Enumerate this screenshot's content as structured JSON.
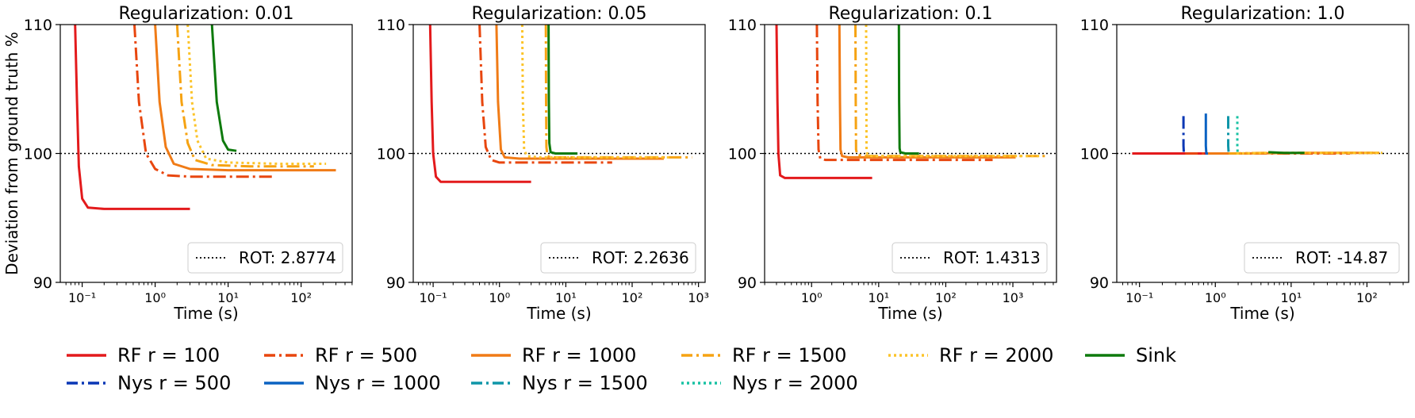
{
  "chart_data": {
    "type": "line",
    "ylabel": "Deviation from ground truth %",
    "xlabel": "Time (s)",
    "xscale": "log",
    "ylim": [
      90,
      110
    ],
    "y_ticks": [
      "90",
      "100",
      "110"
    ],
    "grid": false,
    "reference_line": {
      "y": 100,
      "style": "dotted",
      "color": "#000000"
    },
    "legend": {
      "placement": "bottom",
      "entries": [
        {
          "label": "RF r = 100",
          "color": "#e31a1c",
          "dash": "solid"
        },
        {
          "label": "RF r = 500",
          "color": "#e8460e",
          "dash": "dashdot"
        },
        {
          "label": "RF r = 1000",
          "color": "#f07b16",
          "dash": "solid"
        },
        {
          "label": "RF r = 1500",
          "color": "#f6a313",
          "dash": "dashdot"
        },
        {
          "label": "RF r = 2000",
          "color": "#fcc42a",
          "dash": "dotted"
        },
        {
          "label": "Sink",
          "color": "#0e7a0d",
          "dash": "solid"
        },
        {
          "label": "Nys r = 500",
          "color": "#0a37b5",
          "dash": "dashdot"
        },
        {
          "label": "Nys r = 1000",
          "color": "#0b62c2",
          "dash": "solid"
        },
        {
          "label": "Nys r = 1500",
          "color": "#0f96a8",
          "dash": "dashdot"
        },
        {
          "label": "Nys r = 2000",
          "color": "#18c2a3",
          "dash": "dotted"
        }
      ]
    },
    "panels": [
      {
        "title": "Regularization: 0.01",
        "xlim_log10": [
          -1.3,
          2.7
        ],
        "x_ticks": [
          -1,
          0,
          1,
          2
        ],
        "rot_label": "ROT: 2.8774",
        "show_ylabel": true,
        "series": [
          {
            "name": "RF r = 100",
            "x": [
              0.08,
              0.085,
              0.09,
              0.1,
              0.12,
              0.2,
              3.0
            ],
            "y": [
              110,
              104,
              99,
              96.5,
              95.8,
              95.7,
              95.7
            ]
          },
          {
            "name": "RF r = 500",
            "x": [
              0.52,
              0.6,
              0.75,
              1.0,
              1.5,
              3.0,
              40
            ],
            "y": [
              110,
              104,
              100,
              98.8,
              98.3,
              98.2,
              98.2
            ]
          },
          {
            "name": "RF r = 1000",
            "x": [
              1.0,
              1.15,
              1.4,
              1.8,
              3.0,
              10,
              300
            ],
            "y": [
              110,
              104,
              100.5,
              99.2,
              98.8,
              98.7,
              98.7
            ]
          },
          {
            "name": "RF r = 1500",
            "x": [
              2.0,
              2.3,
              2.8,
              3.5,
              6.0,
              20,
              150
            ],
            "y": [
              110,
              104,
              100.8,
              99.5,
              99.1,
              99.0,
              99.0
            ]
          },
          {
            "name": "RF r = 2000",
            "x": [
              2.8,
              3.2,
              3.8,
              5.0,
              10,
              50,
              220
            ],
            "y": [
              110,
              104,
              101,
              99.6,
              99.3,
              99.2,
              99.2
            ]
          },
          {
            "name": "Sink",
            "x": [
              6.0,
              7.0,
              8.5,
              10,
              13
            ],
            "y": [
              110,
              104,
              101,
              100.3,
              100.2
            ]
          }
        ]
      },
      {
        "title": "Regularization: 0.05",
        "xlim_log10": [
          -1.3,
          3.1
        ],
        "x_ticks": [
          -1,
          0,
          1,
          2,
          3
        ],
        "rot_label": "ROT: 2.2636",
        "show_ylabel": false,
        "series": [
          {
            "name": "RF r = 100",
            "x": [
              0.09,
              0.095,
              0.1,
              0.11,
              0.13,
              0.2,
              3.0
            ],
            "y": [
              110,
              104,
              100,
              98.2,
              97.8,
              97.8,
              97.8
            ]
          },
          {
            "name": "RF r = 500",
            "x": [
              0.5,
              0.55,
              0.62,
              0.75,
              1.0,
              5.0,
              50
            ],
            "y": [
              110,
              104,
              100.5,
              99.5,
              99.3,
              99.3,
              99.3
            ]
          },
          {
            "name": "RF r = 1000",
            "x": [
              0.9,
              0.95,
              1.05,
              1.2,
              2.0,
              20,
              300
            ],
            "y": [
              110,
              104,
              100.3,
              99.7,
              99.6,
              99.6,
              99.6
            ]
          },
          {
            "name": "RF r = 1500",
            "x": [
              5.0,
              5.05,
              5.1,
              5.3,
              6.0,
              50,
              800
            ],
            "y": [
              110,
              104,
              100.5,
              99.8,
              99.7,
              99.7,
              99.7
            ]
          },
          {
            "name": "RF r = 2000",
            "x": [
              2.2,
              2.25,
              2.35,
              2.6,
              4.0,
              50,
              400
            ],
            "y": [
              110,
              104,
              100.3,
              99.8,
              99.7,
              99.7,
              99.7
            ]
          },
          {
            "name": "Sink",
            "x": [
              5.5,
              5.55,
              5.65,
              5.9,
              7.0,
              15
            ],
            "y": [
              110,
              104,
              100.8,
              100.1,
              100.0,
              100.0
            ]
          }
        ]
      },
      {
        "title": "Regularization: 0.1",
        "xlim_log10": [
          -0.7,
          3.65
        ],
        "x_ticks": [
          0,
          1,
          2,
          3
        ],
        "rot_label": "ROT: 1.4313",
        "show_ylabel": false,
        "series": [
          {
            "name": "RF r = 100",
            "x": [
              0.3,
              0.31,
              0.32,
              0.34,
              0.4,
              1.0,
              8.0
            ],
            "y": [
              110,
              104,
              100,
              98.3,
              98.1,
              98.1,
              98.1
            ]
          },
          {
            "name": "RF r = 500",
            "x": [
              1.2,
              1.23,
              1.27,
              1.35,
              1.6,
              10,
              500
            ],
            "y": [
              110,
              104,
              100.3,
              99.6,
              99.5,
              99.5,
              99.5
            ]
          },
          {
            "name": "RF r = 1000",
            "x": [
              2.6,
              2.65,
              2.7,
              2.85,
              3.5,
              50,
              1100
            ],
            "y": [
              110,
              104,
              100.3,
              99.8,
              99.7,
              99.7,
              99.7
            ]
          },
          {
            "name": "RF r = 1500",
            "x": [
              4.5,
              4.55,
              4.6,
              4.8,
              6.0,
              100,
              3000
            ],
            "y": [
              110,
              104,
              100.3,
              99.9,
              99.8,
              99.8,
              99.8
            ]
          },
          {
            "name": "RF r = 2000",
            "x": [
              6.5,
              6.55,
              6.6,
              6.8,
              8.0,
              100,
              2500
            ],
            "y": [
              110,
              104,
              100.3,
              99.9,
              99.8,
              99.8,
              99.8
            ]
          },
          {
            "name": "Sink",
            "x": [
              20,
              20.2,
              20.5,
              21,
              25,
              40
            ],
            "y": [
              110,
              104,
              100.4,
              100.1,
              100.0,
              100.0
            ]
          }
        ]
      },
      {
        "title": "Regularization: 1.0",
        "xlim_log10": [
          -1.3,
          2.55
        ],
        "x_ticks": [
          -1,
          0,
          1,
          2
        ],
        "rot_label": "ROT: -14.87",
        "show_ylabel": false,
        "series": [
          {
            "name": "RF r = 100",
            "x": [
              0.08,
              0.3,
              1.0,
              3.0
            ],
            "y": [
              100.0,
              100.0,
              100.0,
              100.0
            ]
          },
          {
            "name": "RF r = 500",
            "x": [
              0.4,
              1.0,
              10,
              60
            ],
            "y": [
              100.0,
              100.0,
              100.0,
              100.0
            ]
          },
          {
            "name": "RF r = 1000",
            "x": [
              0.75,
              2.0,
              20,
              120
            ],
            "y": [
              100.0,
              100.0,
              100.05,
              100.05
            ]
          },
          {
            "name": "RF r = 1500",
            "x": [
              1.5,
              5.0,
              50,
              150
            ],
            "y": [
              100.0,
              100.05,
              100.05,
              100.05
            ]
          },
          {
            "name": "RF r = 2000",
            "x": [
              1.9,
              5.0,
              50,
              160
            ],
            "y": [
              100.0,
              100.05,
              100.05,
              100.05
            ]
          },
          {
            "name": "Sink",
            "x": [
              5.0,
              8.0,
              15
            ],
            "y": [
              100.1,
              100.05,
              100.05
            ]
          },
          {
            "name": "Nys r = 500",
            "x": [
              0.38,
              0.38,
              0.385,
              0.39
            ],
            "y": [
              102.9,
              100.6,
              100.0,
              100.0
            ]
          },
          {
            "name": "Nys r = 1000",
            "x": [
              0.75,
              0.75,
              0.76,
              0.8
            ],
            "y": [
              103.1,
              100.6,
              100.0,
              100.0
            ]
          },
          {
            "name": "Nys r = 1500",
            "x": [
              1.48,
              1.48,
              1.5,
              1.6
            ],
            "y": [
              102.9,
              100.6,
              100.0,
              100.0
            ]
          },
          {
            "name": "Nys r = 2000",
            "x": [
              1.95,
              1.95,
              1.97,
              2.0
            ],
            "y": [
              102.9,
              100.6,
              100.0,
              100.0
            ]
          }
        ]
      }
    ]
  }
}
